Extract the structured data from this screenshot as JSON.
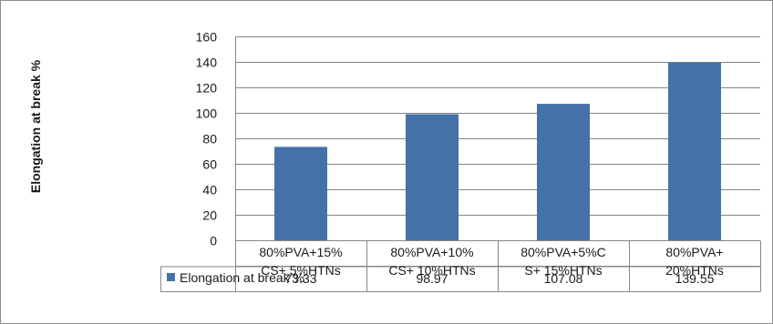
{
  "chart_data": {
    "type": "bar",
    "ylabel": "Elongation at break %",
    "ylim": [
      0,
      160
    ],
    "yticks": [
      0,
      20,
      40,
      60,
      80,
      100,
      120,
      140,
      160
    ],
    "grid": true,
    "categories": [
      [
        "80%PVA+15%",
        "CS+ 5%HTNs"
      ],
      [
        "80%PVA+10%",
        "CS+ 10%HTNs"
      ],
      [
        "80%PVA+5%C",
        "S+ 15%HTNs"
      ],
      [
        "80%PVA+",
        "20%HTNs"
      ]
    ],
    "series": [
      {
        "name": "Elongation at break %",
        "color": "#4472a8",
        "values": [
          73.33,
          98.97,
          107.08,
          139.55
        ],
        "labels": [
          "73.33",
          "98.97",
          "107.08",
          "139.55"
        ]
      }
    ],
    "legend": "data-table"
  }
}
